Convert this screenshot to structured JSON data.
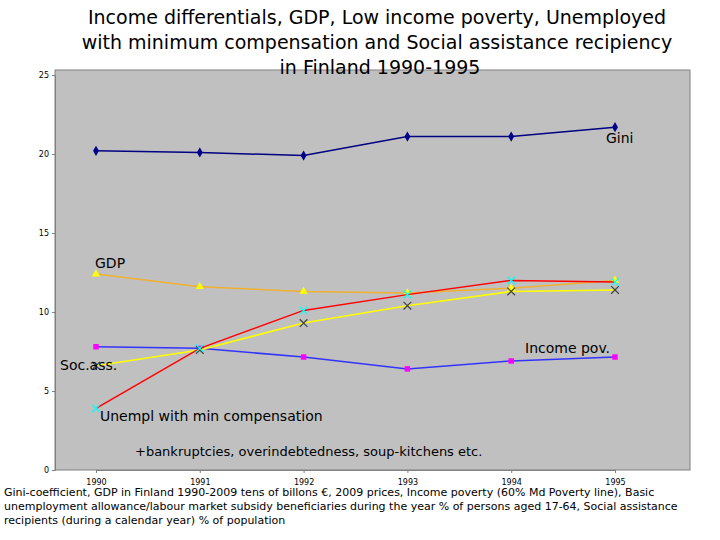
{
  "chart_data": {
    "type": "line",
    "title": "Income differentials, GDP, Low income poverty, Unemployed with minimum compensation and Social assistance recipiency in Finland 1990-1995",
    "categories": [
      "1990",
      "1991",
      "1992",
      "1993",
      "1994",
      "1995"
    ],
    "series": [
      {
        "name": "Gini",
        "color": "#000080",
        "marker": "diamond",
        "values": [
          20.2,
          20.1,
          19.9,
          21.1,
          21.1,
          21.7
        ]
      },
      {
        "name": "GDP",
        "color": "#f0b030",
        "marker": "triangle",
        "values": [
          12.4,
          11.6,
          11.3,
          11.2,
          11.5,
          12.0
        ]
      },
      {
        "name": "Income pov.",
        "color": "#3333ff",
        "marker": "square",
        "values": [
          7.8,
          7.7,
          7.15,
          6.4,
          6.9,
          7.15
        ]
      },
      {
        "name": "Soc.ass.",
        "color": "#ffff00",
        "marker": "x",
        "values": [
          6.6,
          7.6,
          9.3,
          10.4,
          11.3,
          11.4
        ]
      },
      {
        "name": "Unempl with min compensation",
        "color": "#ff0000",
        "marker": "x",
        "values": [
          3.9,
          7.7,
          10.1,
          11.1,
          12.0,
          11.9
        ]
      }
    ],
    "annotations": [
      "+bankruptcies, overindebtedness, soup-kitchens etc."
    ],
    "caption": "Gini-coefficient, GDP in Finland 1990-2009 tens of billons €, 2009 prices, Income poverty (60% Md Poverty line), Basic unemployment allowance/labour market subsidy beneficiaries during the year % of persons aged 17-64, Social assistance recipients (during a calendar year) % of population",
    "ylim": [
      0,
      25
    ],
    "yticks": [
      0,
      5,
      10,
      15,
      20,
      25
    ],
    "grid": false
  }
}
